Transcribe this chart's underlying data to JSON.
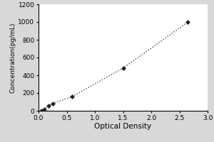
{
  "x_data": [
    0.05,
    0.1,
    0.18,
    0.25,
    0.6,
    1.5,
    2.65
  ],
  "y_data": [
    0,
    15,
    55,
    80,
    160,
    480,
    1000
  ],
  "xlabel": "Optical Density",
  "ylabel": "Concentration(pg/mL)",
  "xlim": [
    0,
    3
  ],
  "ylim": [
    0,
    1200
  ],
  "xticks": [
    0,
    0.5,
    1,
    1.5,
    2,
    2.5,
    3
  ],
  "yticks": [
    0,
    200,
    400,
    600,
    800,
    1000,
    1200
  ],
  "line_color": "#444444",
  "marker": "D",
  "marker_size": 3,
  "marker_color": "#222222",
  "linestyle": "dotted",
  "linewidth": 1.0,
  "figure_bg_color": "#d8d8d8",
  "plot_bg_color": "#ffffff",
  "xlabel_fontsize": 7.5,
  "ylabel_fontsize": 6.5,
  "tick_fontsize": 6.5
}
